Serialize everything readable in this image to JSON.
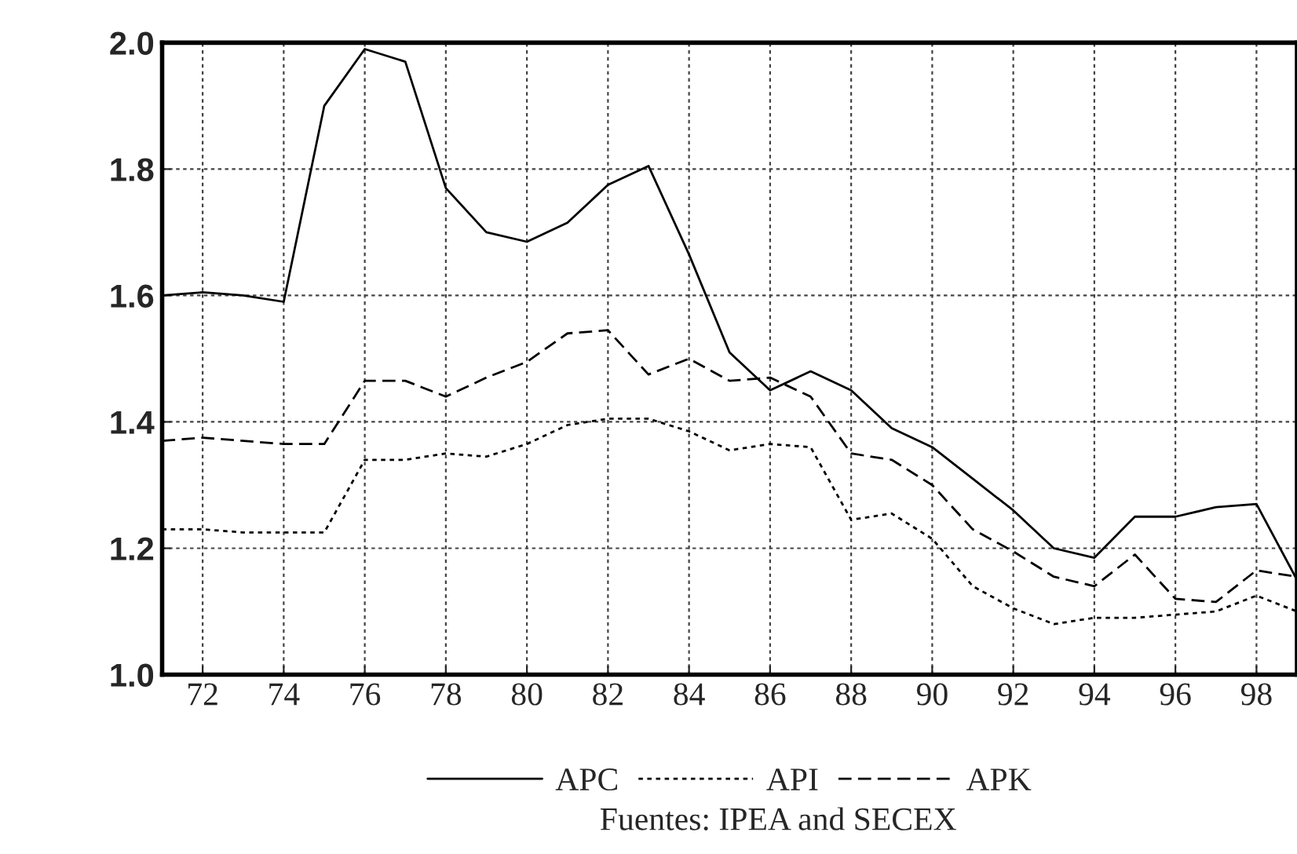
{
  "chart_data": {
    "type": "line",
    "x": [
      71,
      72,
      73,
      74,
      75,
      76,
      77,
      78,
      79,
      80,
      81,
      82,
      83,
      84,
      85,
      86,
      87,
      88,
      89,
      90,
      91,
      92,
      93,
      94,
      95,
      96,
      97,
      98,
      99
    ],
    "series": [
      {
        "name": "APC",
        "color": "#000000",
        "line_style": "solid",
        "values": [
          1.6,
          1.605,
          1.6,
          1.59,
          1.9,
          1.99,
          1.97,
          1.77,
          1.7,
          1.685,
          1.715,
          1.775,
          1.805,
          1.665,
          1.51,
          1.45,
          1.48,
          1.45,
          1.39,
          1.36,
          1.31,
          1.26,
          1.2,
          1.185,
          1.25,
          1.25,
          1.265,
          1.27,
          1.15
        ]
      },
      {
        "name": "API",
        "color": "#000000",
        "line_style": "dotted",
        "values": [
          1.23,
          1.23,
          1.225,
          1.225,
          1.225,
          1.34,
          1.34,
          1.35,
          1.345,
          1.365,
          1.395,
          1.405,
          1.405,
          1.385,
          1.355,
          1.365,
          1.36,
          1.245,
          1.255,
          1.215,
          1.14,
          1.105,
          1.08,
          1.09,
          1.09,
          1.095,
          1.1,
          1.125,
          1.1
        ]
      },
      {
        "name": "APK",
        "color": "#000000",
        "line_style": "dashed",
        "values": [
          1.37,
          1.375,
          1.37,
          1.365,
          1.365,
          1.465,
          1.465,
          1.44,
          1.47,
          1.495,
          1.54,
          1.545,
          1.475,
          1.5,
          1.465,
          1.47,
          1.44,
          1.35,
          1.34,
          1.3,
          1.23,
          1.195,
          1.155,
          1.14,
          1.19,
          1.12,
          1.115,
          1.165,
          1.155
        ]
      }
    ],
    "xlim": [
      71,
      99
    ],
    "xticks": [
      72,
      74,
      76,
      78,
      80,
      82,
      84,
      86,
      88,
      90,
      92,
      94,
      96,
      98
    ],
    "ylim": [
      1.0,
      2.0
    ],
    "yticks": [
      {
        "value": 1.0,
        "label": "1.0"
      },
      {
        "value": 1.2,
        "label": "1.2"
      },
      {
        "value": 1.4,
        "label": "1.4"
      },
      {
        "value": 1.6,
        "label": "1.6"
      },
      {
        "value": 1.8,
        "label": "1.8"
      },
      {
        "value": 2.0,
        "label": "2.0"
      }
    ],
    "grid": true,
    "legend": "bottom",
    "annotations": [
      "Fuentes: IPEA and SECEX"
    ]
  }
}
